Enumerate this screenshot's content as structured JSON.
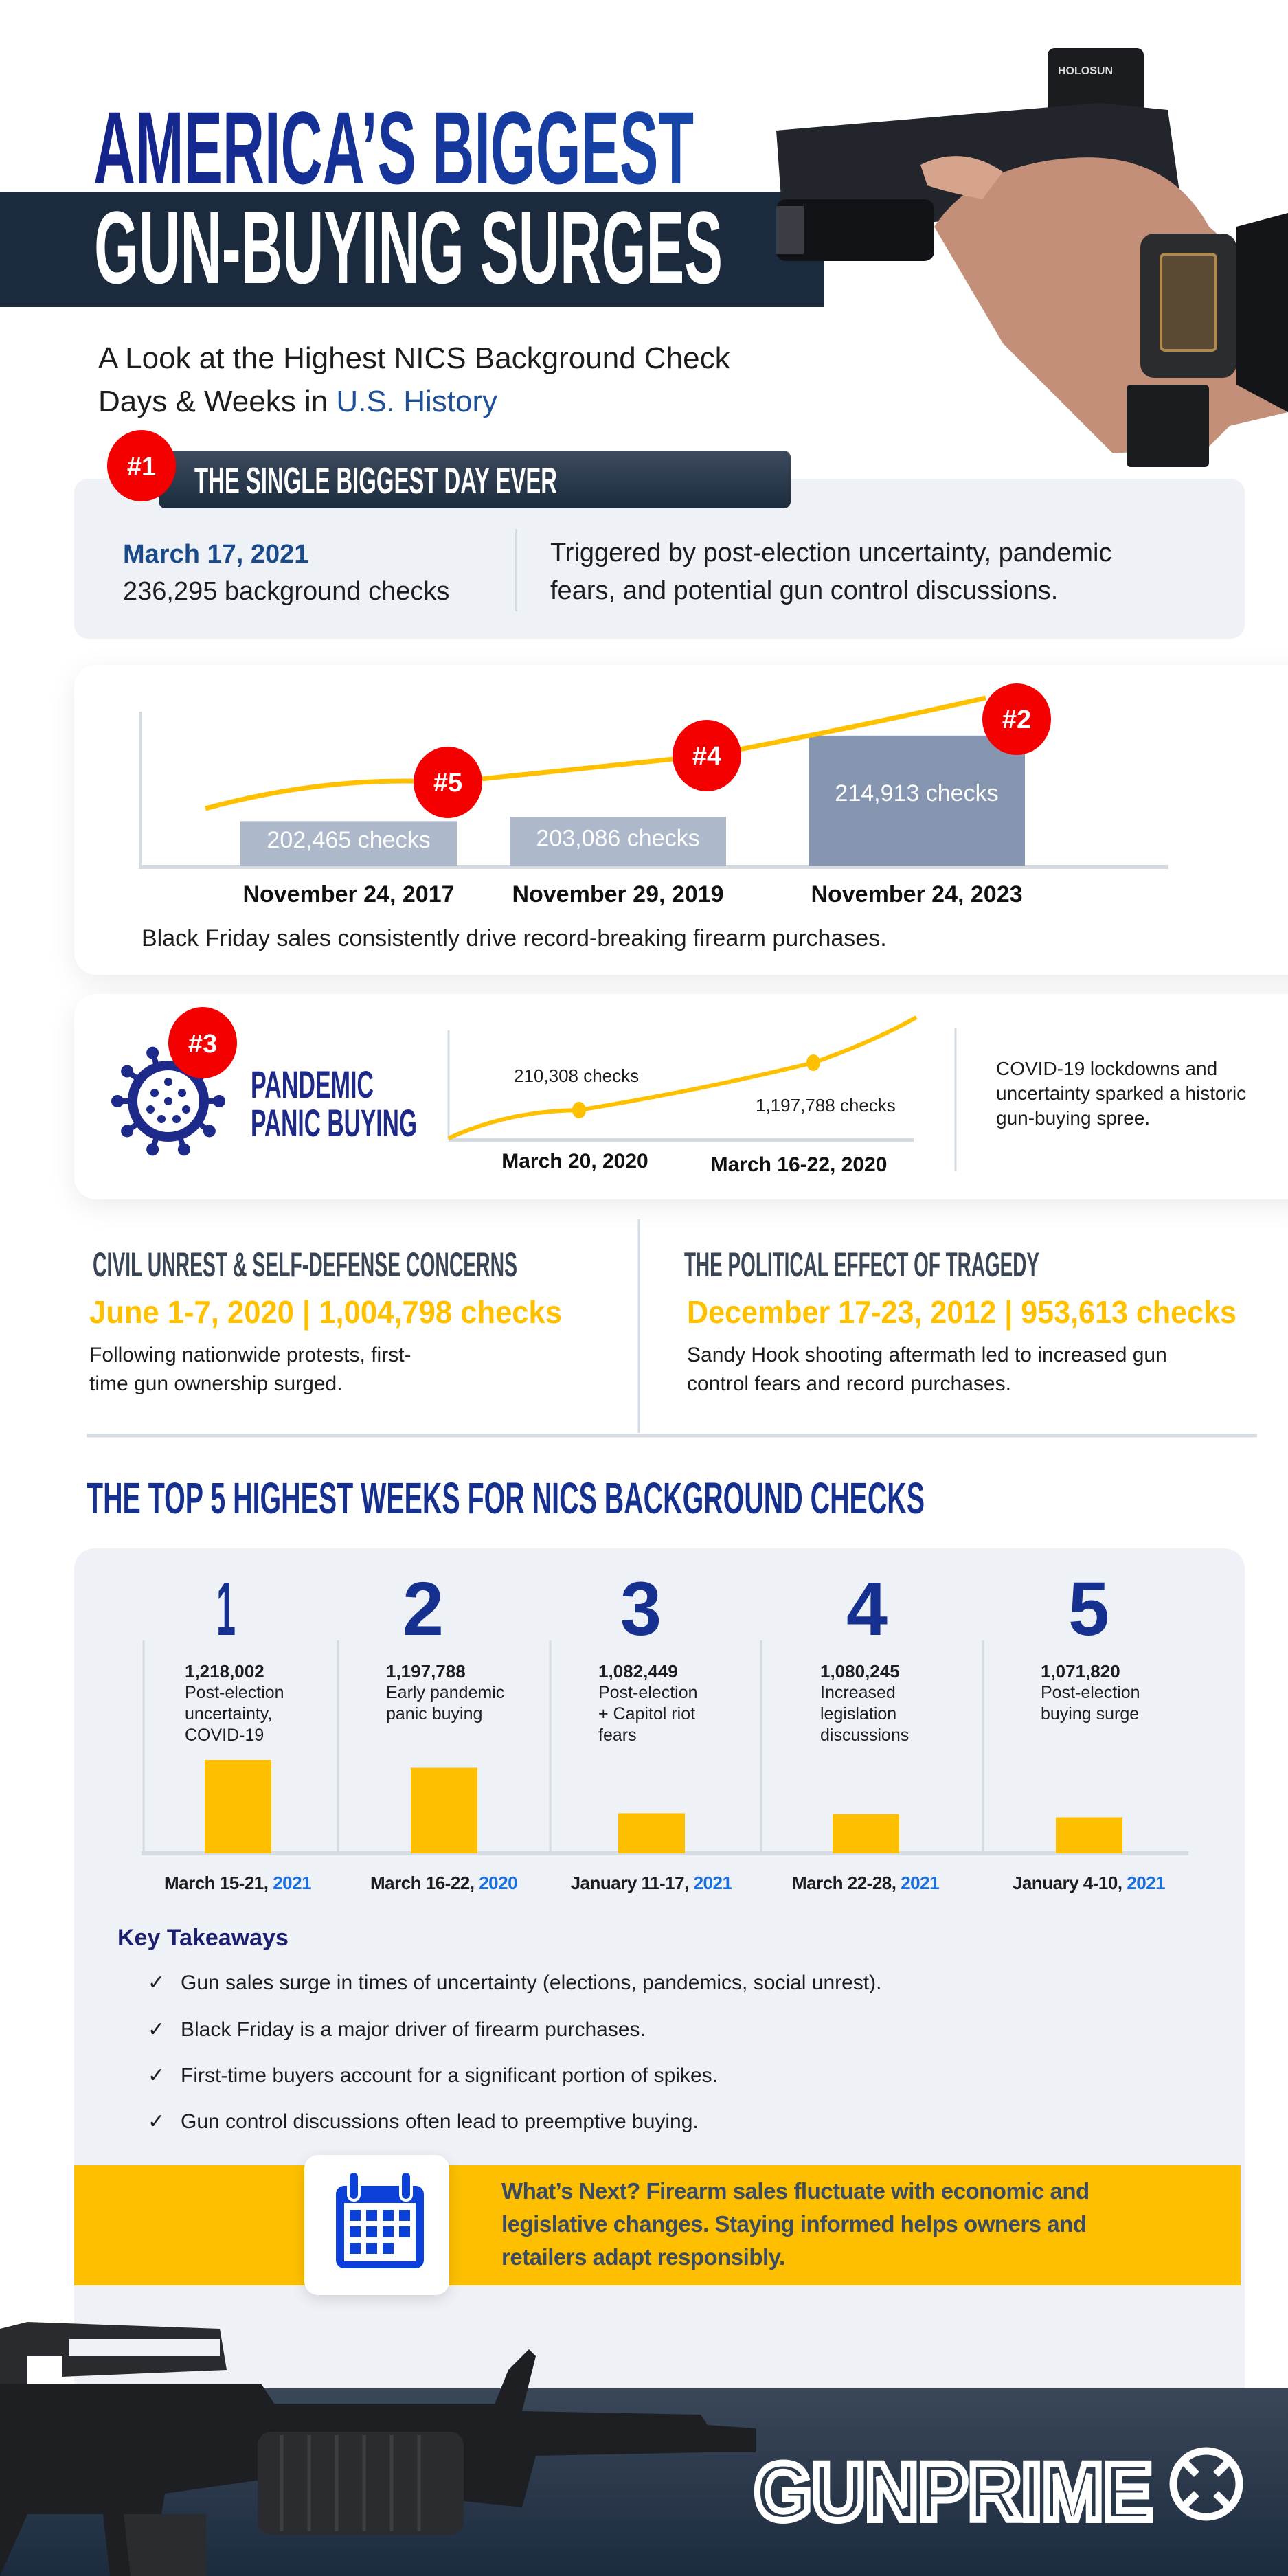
{
  "header": {
    "title_line1": "AMERICA’S BIGGEST",
    "title_line2": "GUN-BUYING SURGES",
    "subtitle_line1": "A Look at the Highest NICS Background Check",
    "subtitle_line2_prefix": "Days & Weeks in ",
    "subtitle_line2_highlight": "U.S. History"
  },
  "biggest_day": {
    "rank": "#1",
    "heading": "THE SINGLE BIGGEST DAY EVER",
    "date": "March 17, 2021",
    "checks": "236,295 background checks",
    "description_lines": [
      "Triggered by post-election uncertainty, pandemic",
      "fears, and potential gun control discussions."
    ]
  },
  "black_friday": {
    "bars": [
      {
        "rank": "#5",
        "date": "November 24, 2017",
        "value": 202465,
        "label": "202,465  checks"
      },
      {
        "rank": "#4",
        "date": "November 29, 2019",
        "value": 203086,
        "label": "203,086 checks"
      },
      {
        "rank": "#2",
        "date": "November 24, 2023",
        "value": 214913,
        "label": "214,913 checks"
      }
    ],
    "caption": "Black Friday sales consistently drive record-breaking firearm purchases."
  },
  "pandemic": {
    "rank": "#3",
    "heading_line1": "PANDEMIC",
    "heading_line2": "PANIC BUYING",
    "points": [
      {
        "date": "March 20, 2020",
        "label": "210,308 checks"
      },
      {
        "date": "March 16-22, 2020",
        "label": "1,197,788 checks"
      }
    ],
    "description_lines": [
      "COVID-19 lockdowns and",
      "uncertainty sparked a historic",
      "gun-buying spree."
    ]
  },
  "civil_unrest": {
    "heading": "CIVIL UNREST & SELF-DEFENSE CONCERNS",
    "stat": "June 1-7, 2020 | 1,004,798 checks",
    "description_lines": [
      "Following nationwide protests, first-",
      "time gun ownership surged."
    ]
  },
  "tragedy": {
    "heading": "THE POLITICAL EFFECT OF TRAGEDY",
    "stat": "December 17-23, 2012 | 953,613 checks",
    "description_lines": [
      "Sandy Hook shooting aftermath led to increased gun",
      "control fears and record purchases."
    ]
  },
  "top_weeks": {
    "heading": "THE TOP 5 HIGHEST WEEKS FOR NICS BACKGROUND CHECKS",
    "weeks": [
      {
        "rank": "1",
        "value": 1218002,
        "value_label": "1,218,002",
        "desc_lines": [
          "Post-election",
          "uncertainty,",
          "COVID-19"
        ],
        "date": "March 15-21, ",
        "year": "2021"
      },
      {
        "rank": "2",
        "value": 1197788,
        "value_label": "1,197,788",
        "desc_lines": [
          "Early pandemic",
          "panic buying"
        ],
        "date": "March 16-22, ",
        "year": "2020"
      },
      {
        "rank": "3",
        "value": 1082449,
        "value_label": "1,082,449",
        "desc_lines": [
          "Post-election",
          "+ Capitol riot",
          "fears"
        ],
        "date": "January 11-17, ",
        "year": "2021"
      },
      {
        "rank": "4",
        "value": 1080245,
        "value_label": "1,080,245",
        "desc_lines": [
          "Increased",
          "legislation",
          "discussions"
        ],
        "date": "March 22-28, ",
        "year": "2021"
      },
      {
        "rank": "5",
        "value": 1071820,
        "value_label": "1,071,820",
        "desc_lines": [
          "Post-election",
          "buying surge"
        ],
        "date": "January 4-10, ",
        "year": "2021"
      }
    ]
  },
  "takeaways": {
    "heading": "Key Takeaways",
    "check_glyph": "✓",
    "items": [
      "Gun sales surge in times of uncertainty (elections, pandemics, social unrest).",
      "Black Friday is a major driver of firearm purchases.",
      "First-time buyers account for a significant portion of spikes.",
      "Gun control discussions often lead to preemptive buying."
    ]
  },
  "whats_next": {
    "icon": "calendar-icon",
    "lines": [
      "What’s Next? Firearm sales fluctuate with economic and",
      "legislative changes. Staying informed helps owners and",
      "retailers adapt responsibly."
    ]
  },
  "footer": {
    "logo": "GUNPRIME"
  },
  "colors": {
    "navy": "#162a85",
    "dark_band": "#1b2a3d",
    "red": "#f50000",
    "yellow": "#ffc000",
    "panel": "#eef1f6",
    "blue_accent": "#1a6fe0"
  }
}
